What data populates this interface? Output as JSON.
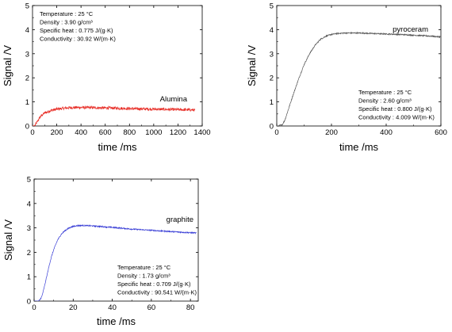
{
  "chart_data": [
    {
      "type": "line",
      "series_label": "Alumina",
      "color": "#e8312a",
      "xlabel": "time /ms",
      "ylabel": "Signal /V",
      "xlim": [
        0,
        1400
      ],
      "ylim": [
        0,
        5
      ],
      "xticks": [
        "0",
        "200",
        "400",
        "600",
        "800",
        "1000",
        "1200",
        "1400"
      ],
      "yticks": [
        "0",
        "1",
        "2",
        "3",
        "4",
        "5"
      ],
      "info": [
        "Temperature : 25 °C",
        "Density : 3.90 g/cm³",
        "Specific heat : 0.775 J/(g·K)",
        "Conductivity : 30.92 W/(m·K)"
      ],
      "info_position": "top-left",
      "x": [
        0,
        20,
        40,
        60,
        80,
        100,
        150,
        200,
        300,
        400,
        500,
        600,
        700,
        800,
        900,
        1000,
        1100,
        1200,
        1300,
        1340
      ],
      "y": [
        0.0,
        0.02,
        0.18,
        0.35,
        0.46,
        0.54,
        0.64,
        0.7,
        0.76,
        0.77,
        0.76,
        0.75,
        0.74,
        0.72,
        0.71,
        0.7,
        0.69,
        0.68,
        0.67,
        0.66
      ],
      "noise": 0.06
    },
    {
      "type": "line",
      "series_label": "pyroceram",
      "color": "#555555",
      "xlabel": "time /ms",
      "ylabel": "Signal /V",
      "xlim": [
        0,
        600
      ],
      "ylim": [
        0,
        5
      ],
      "xticks": [
        "0",
        "200",
        "400",
        "600"
      ],
      "yticks": [
        "0",
        "1",
        "2",
        "3",
        "4",
        "5"
      ],
      "info": [
        "Temperature : 25 °C",
        "Density : 2.60 g/cm³",
        "Specific heat : 0.800 J/(g·K)",
        "Conductivity : 4.009 W/(m·K)"
      ],
      "info_position": "bottom-right",
      "x": [
        0,
        10,
        20,
        30,
        40,
        50,
        60,
        80,
        100,
        120,
        140,
        160,
        180,
        200,
        220,
        250,
        300,
        350,
        400,
        450,
        500,
        550,
        600
      ],
      "y": [
        0.0,
        0.02,
        0.05,
        0.25,
        0.6,
        0.95,
        1.3,
        1.95,
        2.55,
        3.0,
        3.35,
        3.6,
        3.73,
        3.8,
        3.84,
        3.86,
        3.86,
        3.84,
        3.82,
        3.8,
        3.77,
        3.74,
        3.7
      ],
      "noise": 0.025
    },
    {
      "type": "line",
      "series_label": "graphite",
      "color": "#3a3fd6",
      "xlabel": "time /ms",
      "ylabel": "Signal /V",
      "xlim": [
        0,
        84
      ],
      "ylim": [
        0,
        5
      ],
      "xticks": [
        "0",
        "20",
        "40",
        "60",
        "80"
      ],
      "yticks": [
        "0",
        "1",
        "2",
        "3",
        "4",
        "5"
      ],
      "info": [
        "Temperature : 25 °C",
        "Density : 1.73 g/cm³",
        "Specific heat : 0.709 J/(g·K)",
        "Conductivity : 90.541 W/(m·K)"
      ],
      "info_position": "bottom-right",
      "x": [
        0,
        2,
        3,
        4,
        5,
        6,
        7,
        8,
        9,
        10,
        11,
        12,
        14,
        16,
        18,
        20,
        22,
        25,
        30,
        40,
        50,
        60,
        70,
        80,
        83
      ],
      "y": [
        0.0,
        0.0,
        0.05,
        0.2,
        0.5,
        0.85,
        1.2,
        1.55,
        1.85,
        2.1,
        2.3,
        2.5,
        2.75,
        2.9,
        3.0,
        3.06,
        3.09,
        3.1,
        3.08,
        3.02,
        2.95,
        2.9,
        2.85,
        2.8,
        2.79
      ],
      "noise": 0.025
    }
  ]
}
